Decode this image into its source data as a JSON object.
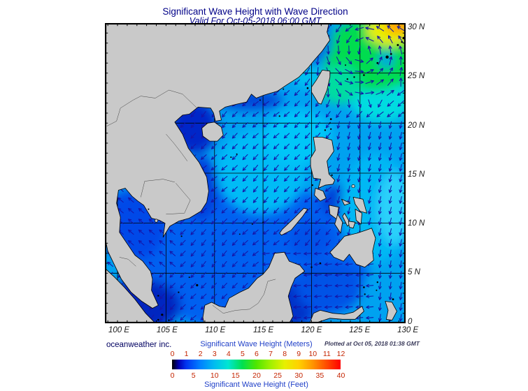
{
  "title": "Significant Wave Height with Wave Direction",
  "subtitle": "Valid For Oct-05-2018 06:00 GMT",
  "credit": "oceanweather inc.",
  "plotted_at": "Plotted at Oct 05, 2018 01:38 GMT",
  "axes": {
    "lat_labels": [
      "30 N",
      "25 N",
      "20 N",
      "15 N",
      "10 N",
      "5 N",
      "0"
    ],
    "lat_values": [
      30,
      25,
      20,
      15,
      10,
      5,
      0
    ],
    "lon_labels": [
      "100 E",
      "105 E",
      "110 E",
      "115 E",
      "120 E",
      "125 E",
      "130 E"
    ],
    "lon_values": [
      100,
      105,
      110,
      115,
      120,
      125,
      130
    ]
  },
  "map_extent": {
    "lon_min": 98.7,
    "lon_max": 129.7,
    "lat_min": 0,
    "lat_max": 30,
    "grid_step_deg": 5
  },
  "legend": {
    "meters_title": "Significant Wave Height (Meters)",
    "feet_title": "Significant Wave Height (Feet)",
    "meters_ticks": [
      "0",
      "1",
      "2",
      "3",
      "4",
      "5",
      "6",
      "7",
      "8",
      "9",
      "10",
      "11",
      "12"
    ],
    "feet_ticks": [
      "0",
      "5",
      "10",
      "15",
      "20",
      "25",
      "30",
      "35",
      "40"
    ],
    "gradient_stops": [
      {
        "p": 0.0,
        "c": "#000000"
      },
      {
        "p": 0.04,
        "c": "#0000B4"
      },
      {
        "p": 0.083,
        "c": "#0033F0"
      },
      {
        "p": 0.167,
        "c": "#0080FF"
      },
      {
        "p": 0.25,
        "c": "#00BCF0"
      },
      {
        "p": 0.333,
        "c": "#00E6D2"
      },
      {
        "p": 0.417,
        "c": "#00E050"
      },
      {
        "p": 0.5,
        "c": "#50E600"
      },
      {
        "p": 0.583,
        "c": "#A0F000"
      },
      {
        "p": 0.667,
        "c": "#E6F000"
      },
      {
        "p": 0.75,
        "c": "#FFD200"
      },
      {
        "p": 0.833,
        "c": "#FF9600"
      },
      {
        "p": 0.917,
        "c": "#FF4B00"
      },
      {
        "p": 1.0,
        "c": "#FF0000"
      }
    ]
  },
  "colors": {
    "title_text": "#000087",
    "axis_label_text": "#1a1a1a",
    "legend_title_text": "#2040C8",
    "legend_tick_text": "#C42400",
    "credit_text": "#000060",
    "land": "#C9C9C9",
    "coastline": "#000000",
    "ocean_base": "#00A2F0",
    "arrow": "#1515A8",
    "grid": "#000000",
    "frame": "#000000"
  }
}
